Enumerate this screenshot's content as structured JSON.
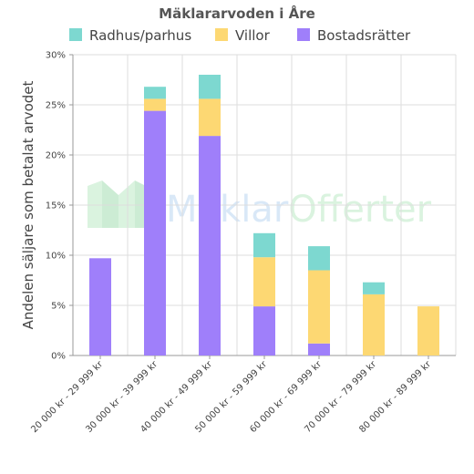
{
  "chart_data": {
    "type": "bar",
    "stacked": true,
    "title": "Mäklararvoden i Åre",
    "ylabel": "Andelen säljare som betalat arvodet",
    "xlabel": "",
    "ylim": [
      0,
      30
    ],
    "yticks": [
      "0%",
      "5%",
      "10%",
      "15%",
      "20%",
      "25%",
      "30%"
    ],
    "ytick_values": [
      0,
      5,
      10,
      15,
      20,
      25,
      30
    ],
    "grid": true,
    "legend_position": "top",
    "categories": [
      "20 000 kr - 29 999 kr",
      "30 000 kr - 39 999 kr",
      "40 000 kr - 49 999 kr",
      "50 000 kr - 59 999 kr",
      "60 000 kr - 69 999 kr",
      "70 000 kr - 79 999 kr",
      "80 000 kr - 89 999 kr"
    ],
    "series": [
      {
        "name": "Bostadsrätter",
        "color": "#9f7ffa",
        "values": [
          9.7,
          24.4,
          21.9,
          4.9,
          1.2,
          0,
          0
        ]
      },
      {
        "name": "Villor",
        "color": "#fdd873",
        "values": [
          0,
          1.2,
          3.7,
          4.9,
          7.3,
          6.1,
          4.9
        ]
      },
      {
        "name": "Radhus/parhus",
        "color": "#7dd8d0",
        "values": [
          0,
          1.2,
          2.4,
          2.4,
          2.4,
          1.2,
          0
        ]
      }
    ],
    "legend_order": [
      "Radhus/parhus",
      "Villor",
      "Bostadsrätter"
    ]
  },
  "watermark": {
    "text_part1": "Mäklar",
    "text_part2": "Offerter",
    "color1": "#d5e6f7",
    "color2": "#d6f2dc"
  }
}
